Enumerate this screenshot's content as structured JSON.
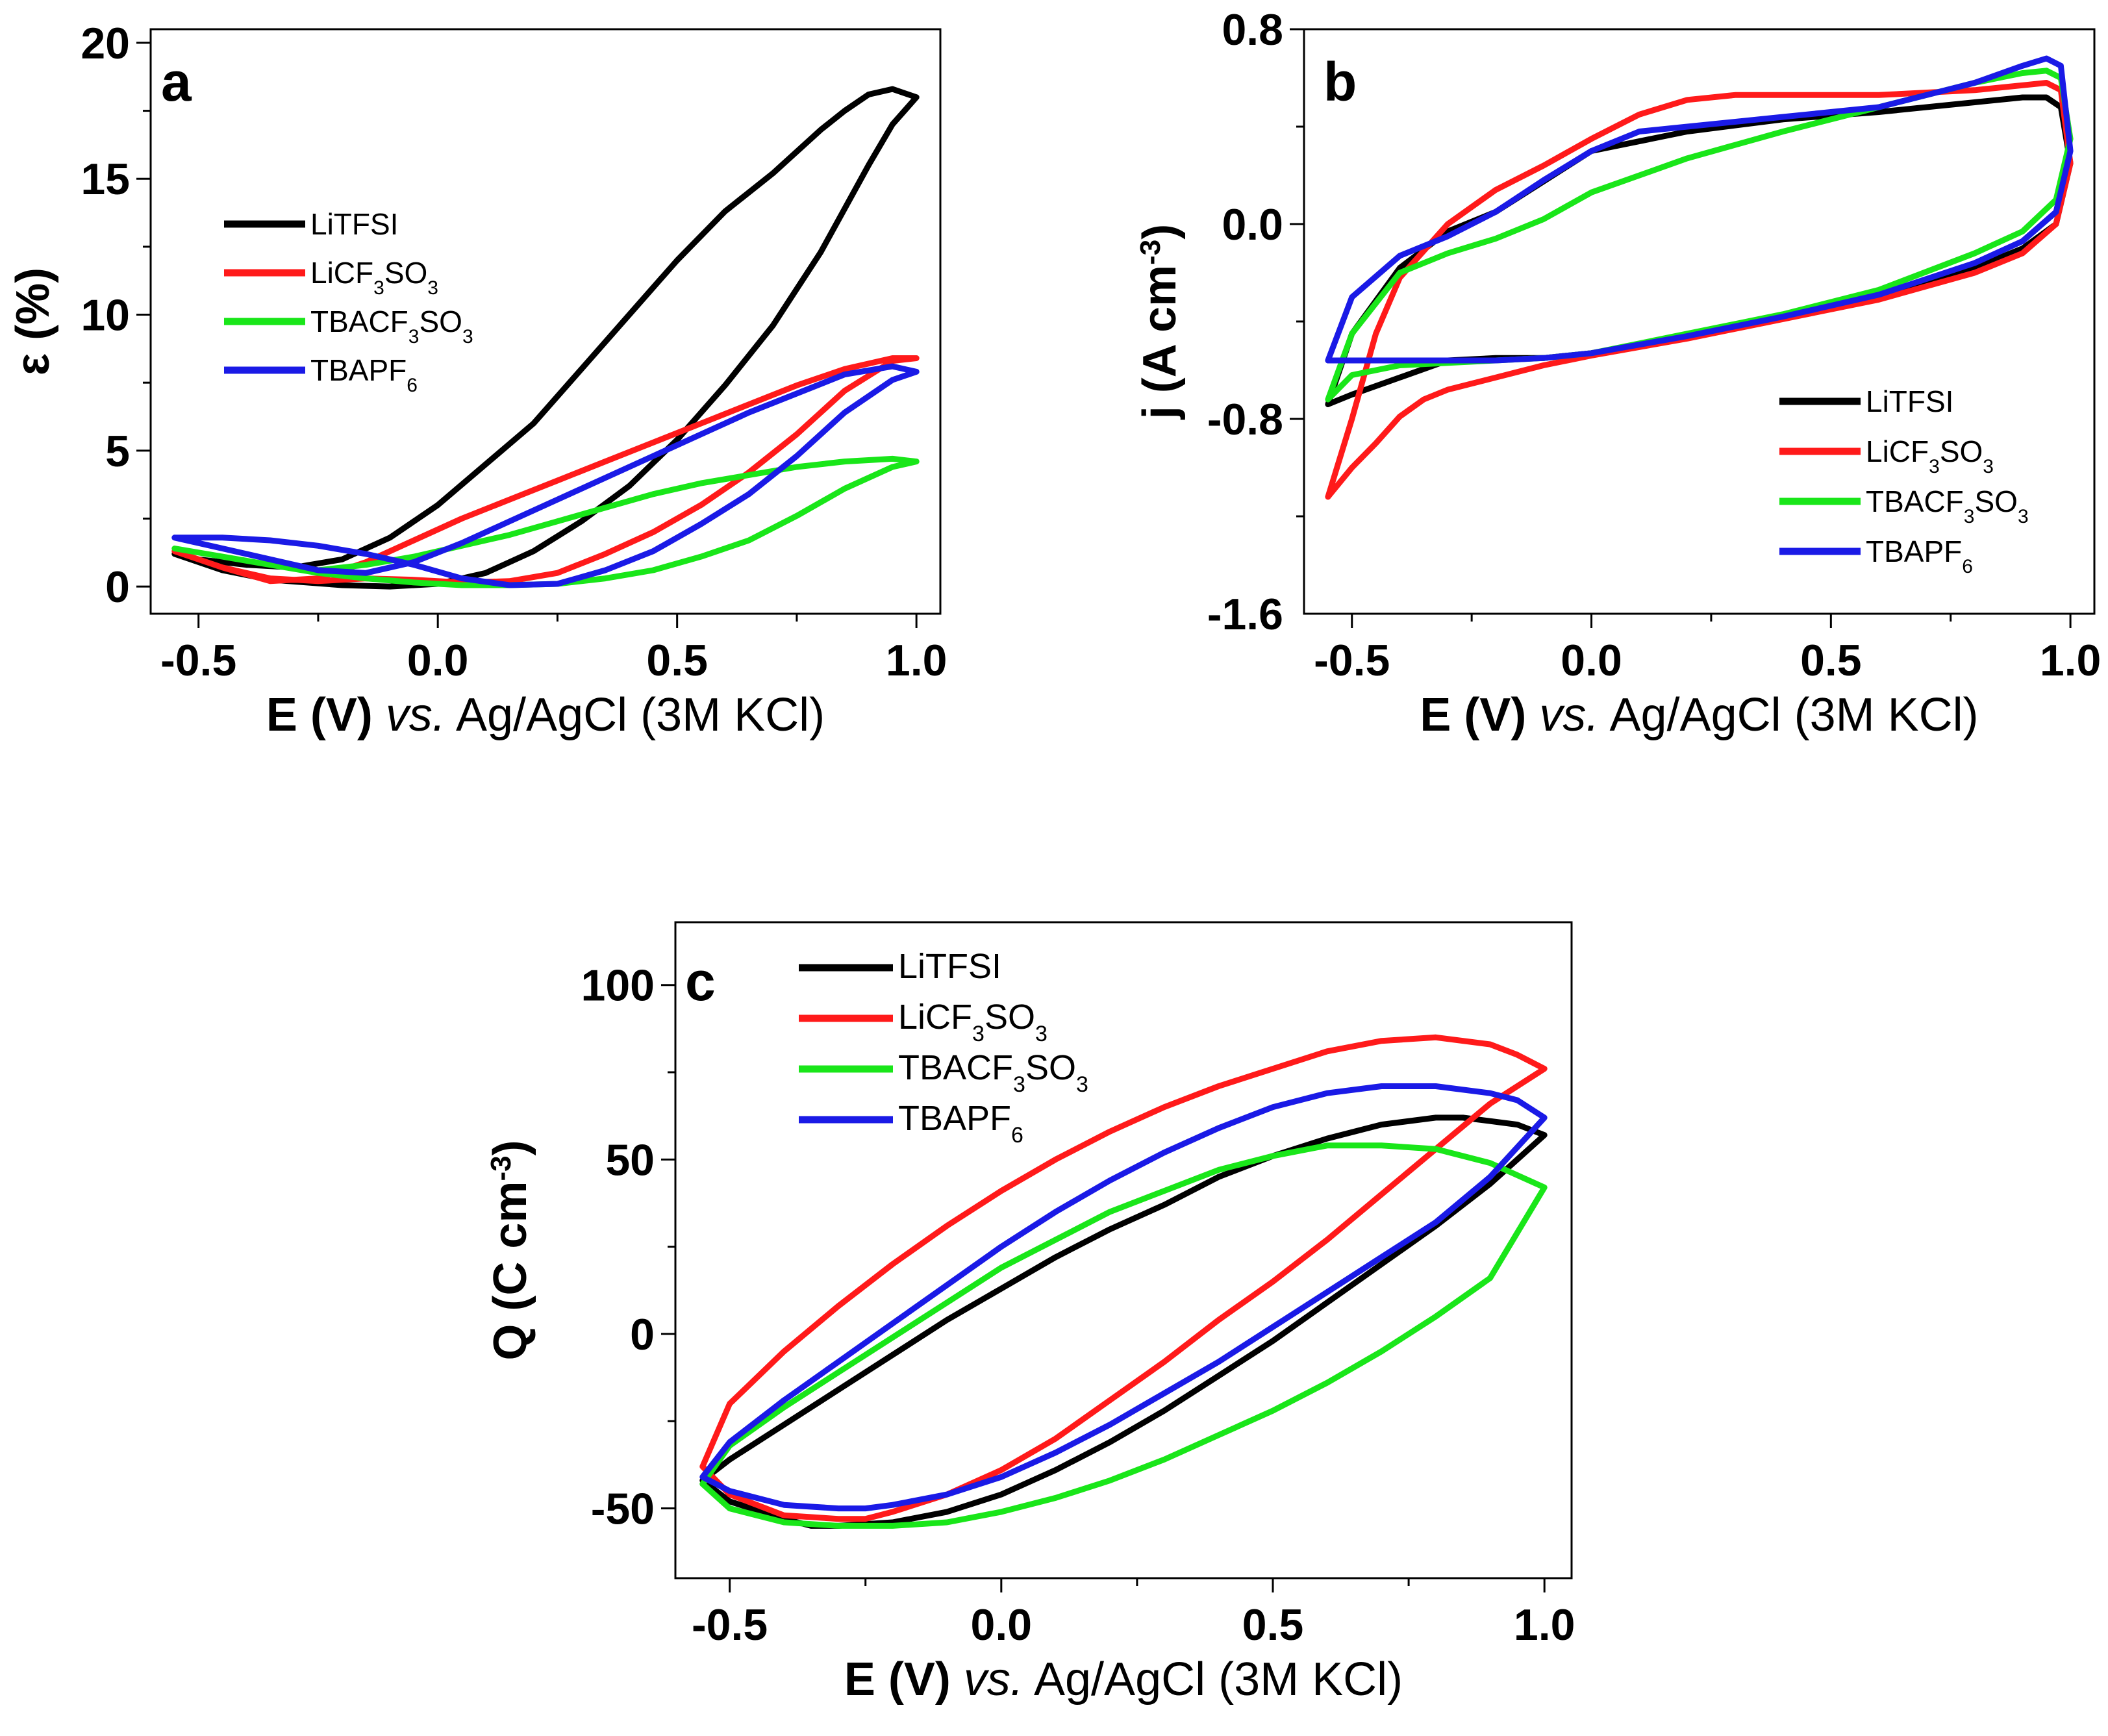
{
  "colors": {
    "LiTFSI": "#000000",
    "LiCF3SO3": "#ff1a1a",
    "TBACF3SO3": "#19e619",
    "TBAPF6": "#1a1ae6"
  },
  "legend_labels": [
    {
      "key": "LiTFSI",
      "parts": [
        [
          "n",
          "LiTFSI"
        ]
      ]
    },
    {
      "key": "LiCF3SO3",
      "parts": [
        [
          "n",
          "LiCF"
        ],
        [
          "s",
          "3"
        ],
        [
          "n",
          "SO"
        ],
        [
          "s",
          "3"
        ]
      ]
    },
    {
      "key": "TBACF3SO3",
      "parts": [
        [
          "n",
          "TBACF"
        ],
        [
          "s",
          "3"
        ],
        [
          "n",
          "SO"
        ],
        [
          "s",
          "3"
        ]
      ]
    },
    {
      "key": "TBAPF6",
      "parts": [
        [
          "n",
          "TBAPF"
        ],
        [
          "s",
          "6"
        ]
      ]
    }
  ],
  "x_title_parts": [
    [
      "b",
      "E (V) "
    ],
    [
      "i",
      "vs."
    ],
    [
      "n",
      " Ag/AgCl (3M KCl)"
    ]
  ],
  "chart_data": [
    {
      "panel": "a",
      "type": "line",
      "ylabel": "ε (%)",
      "xlim": [
        -0.6,
        1.05
      ],
      "ylim": [
        -1,
        20.5
      ],
      "xticks": [
        -0.5,
        0.0,
        0.5,
        1.0
      ],
      "xtick_labels": [
        "-0.5",
        "0.0",
        "0.5",
        "1.0"
      ],
      "yticks": [
        0,
        5,
        10,
        15,
        20
      ],
      "ytick_labels": [
        "0",
        "5",
        "10",
        "15",
        "20"
      ],
      "legend_position": "center-left",
      "series": [
        {
          "name": "LiTFSI",
          "x": [
            -0.55,
            -0.45,
            -0.35,
            -0.2,
            -0.1,
            0.0,
            0.1,
            0.2,
            0.3,
            0.4,
            0.5,
            0.6,
            0.7,
            0.8,
            0.9,
            0.95,
            1.0,
            0.95,
            0.9,
            0.85,
            0.8,
            0.7,
            0.6,
            0.5,
            0.4,
            0.3,
            0.2,
            0.1,
            0.0,
            -0.1,
            -0.2,
            -0.3,
            -0.4,
            -0.5,
            -0.55
          ],
          "y": [
            1.2,
            0.6,
            0.25,
            0.05,
            0.0,
            0.1,
            0.5,
            1.3,
            2.4,
            3.7,
            5.4,
            7.4,
            9.6,
            12.3,
            15.5,
            17.0,
            18.0,
            18.3,
            18.1,
            17.5,
            16.8,
            15.2,
            13.8,
            12.0,
            10.0,
            8.0,
            6.0,
            4.5,
            3.0,
            1.8,
            1.0,
            0.7,
            0.8,
            1.0,
            1.2
          ]
        },
        {
          "name": "LiCF3SO3",
          "x": [
            -0.55,
            -0.45,
            -0.35,
            -0.25,
            -0.15,
            -0.05,
            0.05,
            0.15,
            0.25,
            0.35,
            0.45,
            0.55,
            0.65,
            0.75,
            0.85,
            0.95,
            1.0,
            0.95,
            0.85,
            0.75,
            0.65,
            0.55,
            0.45,
            0.35,
            0.25,
            0.15,
            0.05,
            -0.05,
            -0.15,
            -0.25,
            -0.35,
            -0.45,
            -0.55
          ],
          "y": [
            1.3,
            0.7,
            0.3,
            0.2,
            0.3,
            0.25,
            0.15,
            0.2,
            0.5,
            1.2,
            2.0,
            3.0,
            4.2,
            5.6,
            7.2,
            8.3,
            8.4,
            8.4,
            8.0,
            7.4,
            6.7,
            6.0,
            5.3,
            4.6,
            3.9,
            3.2,
            2.5,
            1.7,
            0.9,
            0.3,
            0.2,
            0.7,
            1.3
          ]
        },
        {
          "name": "TBACF3SO3",
          "x": [
            -0.55,
            -0.45,
            -0.35,
            -0.25,
            -0.15,
            -0.05,
            0.05,
            0.15,
            0.25,
            0.35,
            0.45,
            0.55,
            0.65,
            0.75,
            0.85,
            0.95,
            1.0,
            0.95,
            0.85,
            0.75,
            0.65,
            0.55,
            0.45,
            0.35,
            0.25,
            0.15,
            0.05,
            -0.05,
            -0.15,
            -0.25,
            -0.35,
            -0.45,
            -0.55
          ],
          "y": [
            1.4,
            1.1,
            0.8,
            0.5,
            0.3,
            0.15,
            0.05,
            0.05,
            0.1,
            0.3,
            0.6,
            1.1,
            1.7,
            2.6,
            3.6,
            4.4,
            4.6,
            4.7,
            4.6,
            4.4,
            4.1,
            3.8,
            3.4,
            2.9,
            2.4,
            1.9,
            1.5,
            1.1,
            0.8,
            0.6,
            0.8,
            1.1,
            1.4
          ]
        },
        {
          "name": "TBAPF6",
          "x": [
            -0.55,
            -0.45,
            -0.35,
            -0.25,
            -0.15,
            -0.05,
            0.05,
            0.15,
            0.25,
            0.35,
            0.45,
            0.55,
            0.65,
            0.75,
            0.85,
            0.95,
            1.0,
            0.95,
            0.85,
            0.75,
            0.65,
            0.55,
            0.45,
            0.35,
            0.25,
            0.15,
            0.05,
            -0.05,
            -0.15,
            -0.25,
            -0.35,
            -0.45,
            -0.55
          ],
          "y": [
            1.8,
            1.8,
            1.7,
            1.5,
            1.2,
            0.8,
            0.3,
            0.05,
            0.1,
            0.6,
            1.3,
            2.3,
            3.4,
            4.8,
            6.4,
            7.6,
            7.9,
            8.1,
            7.8,
            7.1,
            6.4,
            5.6,
            4.8,
            4.0,
            3.2,
            2.4,
            1.6,
            0.9,
            0.5,
            0.6,
            1.0,
            1.4,
            1.8
          ]
        }
      ]
    },
    {
      "panel": "b",
      "type": "line",
      "ylabel_parts": [
        [
          "n",
          "j (A cm"
        ],
        [
          "s",
          "-3"
        ],
        [
          "n",
          ")"
        ]
      ],
      "xlim": [
        -0.6,
        1.05
      ],
      "ylim": [
        -1.6,
        0.8
      ],
      "xticks": [
        -0.5,
        0.0,
        0.5,
        1.0
      ],
      "xtick_labels": [
        "-0.5",
        "0.0",
        "0.5",
        "1.0"
      ],
      "yticks": [
        -1.6,
        -0.8,
        0.0,
        0.8
      ],
      "ytick_labels": [
        "-1.6",
        "-0.8",
        "0.0",
        "0.8"
      ],
      "legend_position": "bottom-right",
      "series": [
        {
          "name": "LiTFSI",
          "x": [
            -0.55,
            -0.5,
            -0.4,
            -0.3,
            -0.2,
            -0.1,
            0.0,
            0.2,
            0.4,
            0.6,
            0.8,
            0.9,
            0.97,
            1.0,
            0.98,
            0.95,
            0.9,
            0.8,
            0.6,
            0.4,
            0.2,
            0.0,
            -0.2,
            -0.3,
            -0.4,
            -0.5,
            -0.55
          ],
          "y": [
            -0.74,
            -0.7,
            -0.63,
            -0.56,
            -0.55,
            -0.55,
            -0.53,
            -0.46,
            -0.38,
            -0.3,
            -0.18,
            -0.1,
            0.0,
            0.25,
            0.48,
            0.52,
            0.52,
            0.5,
            0.46,
            0.43,
            0.38,
            0.3,
            0.05,
            -0.03,
            -0.18,
            -0.45,
            -0.74
          ]
        },
        {
          "name": "LiCF3SO3",
          "x": [
            -0.55,
            -0.5,
            -0.45,
            -0.4,
            -0.35,
            -0.3,
            -0.2,
            -0.1,
            0.0,
            0.2,
            0.4,
            0.6,
            0.8,
            0.9,
            0.97,
            1.0,
            0.98,
            0.95,
            0.9,
            0.8,
            0.6,
            0.4,
            0.3,
            0.2,
            0.1,
            0.0,
            -0.1,
            -0.2,
            -0.3,
            -0.4,
            -0.45,
            -0.5,
            -0.55
          ],
          "y": [
            -1.12,
            -1.0,
            -0.9,
            -0.79,
            -0.72,
            -0.68,
            -0.63,
            -0.58,
            -0.54,
            -0.47,
            -0.39,
            -0.31,
            -0.2,
            -0.12,
            0.0,
            0.25,
            0.55,
            0.58,
            0.57,
            0.55,
            0.53,
            0.53,
            0.53,
            0.51,
            0.45,
            0.35,
            0.24,
            0.14,
            0.0,
            -0.22,
            -0.45,
            -0.8,
            -1.12
          ]
        },
        {
          "name": "TBACF3SO3",
          "x": [
            -0.55,
            -0.5,
            -0.4,
            -0.3,
            -0.2,
            -0.1,
            0.0,
            0.2,
            0.4,
            0.6,
            0.8,
            0.9,
            0.97,
            1.0,
            0.98,
            0.95,
            0.9,
            0.8,
            0.6,
            0.4,
            0.2,
            0.0,
            -0.1,
            -0.2,
            -0.3,
            -0.4,
            -0.5,
            -0.55
          ],
          "y": [
            -0.72,
            -0.62,
            -0.58,
            -0.57,
            -0.56,
            -0.55,
            -0.53,
            -0.45,
            -0.37,
            -0.27,
            -0.12,
            -0.03,
            0.1,
            0.35,
            0.6,
            0.63,
            0.62,
            0.58,
            0.48,
            0.38,
            0.27,
            0.13,
            0.02,
            -0.06,
            -0.12,
            -0.2,
            -0.45,
            -0.72
          ]
        },
        {
          "name": "TBAPF6",
          "x": [
            -0.55,
            -0.5,
            -0.4,
            -0.3,
            -0.2,
            -0.1,
            0.0,
            0.2,
            0.4,
            0.6,
            0.8,
            0.9,
            0.97,
            1.0,
            0.98,
            0.95,
            0.9,
            0.8,
            0.6,
            0.4,
            0.2,
            0.1,
            0.0,
            -0.1,
            -0.2,
            -0.3,
            -0.4,
            -0.5,
            -0.55
          ],
          "y": [
            -0.56,
            -0.56,
            -0.56,
            -0.56,
            -0.56,
            -0.55,
            -0.53,
            -0.46,
            -0.38,
            -0.29,
            -0.16,
            -0.07,
            0.05,
            0.3,
            0.65,
            0.68,
            0.65,
            0.58,
            0.48,
            0.44,
            0.4,
            0.38,
            0.3,
            0.18,
            0.05,
            -0.05,
            -0.13,
            -0.3,
            -0.56
          ]
        }
      ]
    },
    {
      "panel": "c",
      "type": "line",
      "ylabel_parts": [
        [
          "n",
          "Q (C cm"
        ],
        [
          "s",
          "-3"
        ],
        [
          "n",
          ")"
        ]
      ],
      "xlim": [
        -0.6,
        1.05
      ],
      "ylim": [
        -70,
        118
      ],
      "xticks": [
        -0.5,
        0.0,
        0.5,
        1.0
      ],
      "xtick_labels": [
        "-0.5",
        "0.0",
        "0.5",
        "1.0"
      ],
      "yticks": [
        -50,
        0,
        50,
        100
      ],
      "ytick_labels": [
        "-50",
        "0",
        "50",
        "100"
      ],
      "legend_position": "top-left",
      "series": [
        {
          "name": "LiTFSI",
          "x": [
            -0.55,
            -0.5,
            -0.4,
            -0.35,
            -0.3,
            -0.2,
            -0.1,
            0.0,
            0.1,
            0.2,
            0.3,
            0.4,
            0.5,
            0.6,
            0.7,
            0.8,
            0.9,
            1.0,
            0.95,
            0.9,
            0.85,
            0.8,
            0.7,
            0.6,
            0.5,
            0.4,
            0.3,
            0.2,
            0.1,
            0.0,
            -0.1,
            -0.2,
            -0.3,
            -0.4,
            -0.5,
            -0.55
          ],
          "y": [
            -42,
            -48,
            -53,
            -55,
            -55,
            -54,
            -51,
            -46,
            -39,
            -31,
            -22,
            -12,
            -2,
            9,
            20,
            31,
            43,
            57,
            60,
            61,
            62,
            62,
            60,
            56,
            51,
            45,
            37,
            30,
            22,
            13,
            4,
            -6,
            -16,
            -26,
            -36,
            -42
          ]
        },
        {
          "name": "LiCF3SO3",
          "x": [
            -0.55,
            -0.5,
            -0.4,
            -0.3,
            -0.25,
            -0.2,
            -0.1,
            0.0,
            0.1,
            0.2,
            0.3,
            0.4,
            0.5,
            0.6,
            0.7,
            0.8,
            0.9,
            1.0,
            0.95,
            0.9,
            0.8,
            0.7,
            0.6,
            0.5,
            0.4,
            0.3,
            0.2,
            0.1,
            0.0,
            -0.1,
            -0.2,
            -0.3,
            -0.4,
            -0.5,
            -0.55
          ],
          "y": [
            -38,
            -46,
            -52,
            -53,
            -53,
            -51,
            -46,
            -39,
            -30,
            -19,
            -8,
            4,
            15,
            27,
            40,
            53,
            66,
            76,
            80,
            83,
            85,
            84,
            81,
            76,
            71,
            65,
            58,
            50,
            41,
            31,
            20,
            8,
            -5,
            -20,
            -38
          ]
        },
        {
          "name": "TBACF3SO3",
          "x": [
            -0.55,
            -0.5,
            -0.4,
            -0.3,
            -0.25,
            -0.2,
            -0.1,
            0.0,
            0.1,
            0.2,
            0.3,
            0.4,
            0.5,
            0.6,
            0.7,
            0.8,
            0.9,
            1.0,
            0.9,
            0.8,
            0.7,
            0.6,
            0.5,
            0.4,
            0.3,
            0.2,
            0.1,
            0.0,
            -0.1,
            -0.2,
            -0.3,
            -0.4,
            -0.5,
            -0.55
          ],
          "y": [
            -43,
            -50,
            -54,
            -55,
            -55,
            -55,
            -54,
            -51,
            -47,
            -42,
            -36,
            -29,
            -22,
            -14,
            -5,
            5,
            16,
            42,
            49,
            53,
            54,
            54,
            51,
            47,
            41,
            35,
            27,
            19,
            9,
            -1,
            -11,
            -21,
            -32,
            -43
          ]
        },
        {
          "name": "TBAPF6",
          "x": [
            -0.55,
            -0.5,
            -0.4,
            -0.3,
            -0.25,
            -0.2,
            -0.1,
            0.0,
            0.1,
            0.2,
            0.3,
            0.4,
            0.5,
            0.6,
            0.7,
            0.8,
            0.9,
            1.0,
            0.95,
            0.9,
            0.8,
            0.7,
            0.6,
            0.5,
            0.4,
            0.3,
            0.2,
            0.1,
            0.0,
            -0.1,
            -0.2,
            -0.3,
            -0.4,
            -0.5,
            -0.55
          ],
          "y": [
            -41,
            -45,
            -49,
            -50,
            -50,
            -49,
            -46,
            -41,
            -34,
            -26,
            -17,
            -8,
            2,
            12,
            22,
            32,
            45,
            62,
            67,
            69,
            71,
            71,
            69,
            65,
            59,
            52,
            44,
            35,
            25,
            14,
            3,
            -8,
            -19,
            -31,
            -41
          ]
        }
      ]
    }
  ]
}
